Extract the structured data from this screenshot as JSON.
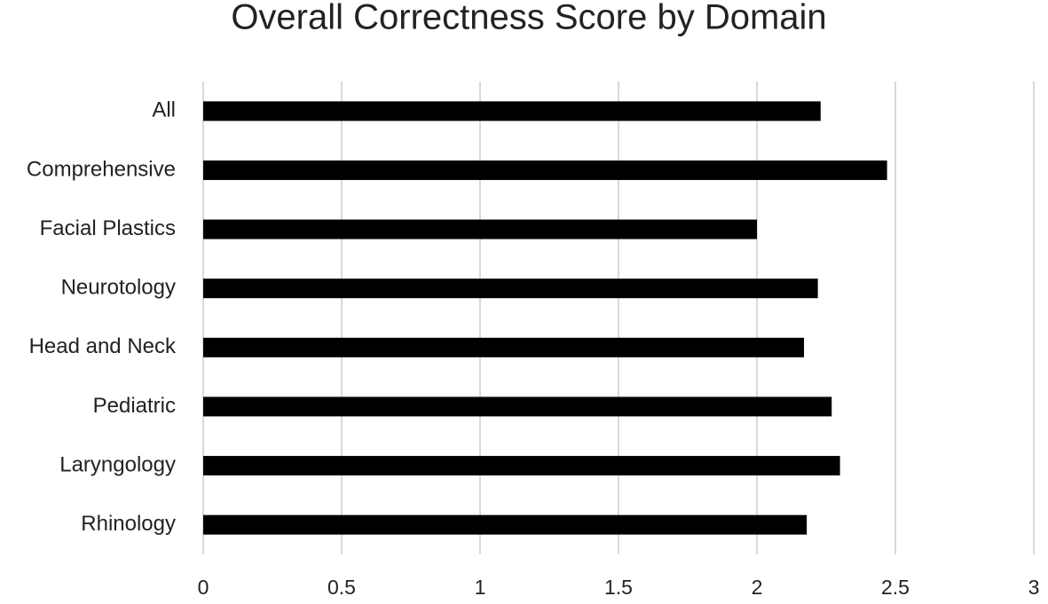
{
  "chart_data": {
    "type": "bar",
    "orientation": "horizontal",
    "title": "Overall Correctness Score by Domain",
    "categories": [
      "All",
      "Comprehensive",
      "Facial Plastics",
      "Neurotology",
      "Head and Neck",
      "Pediatric",
      "Laryngology",
      "Rhinology"
    ],
    "values": [
      2.23,
      2.47,
      2.0,
      2.22,
      2.17,
      2.27,
      2.3,
      2.18
    ],
    "color": "#000000",
    "xlim": [
      0,
      3
    ],
    "xticks": [
      0,
      0.5,
      1,
      1.5,
      2,
      2.5,
      3
    ],
    "grid": true
  }
}
